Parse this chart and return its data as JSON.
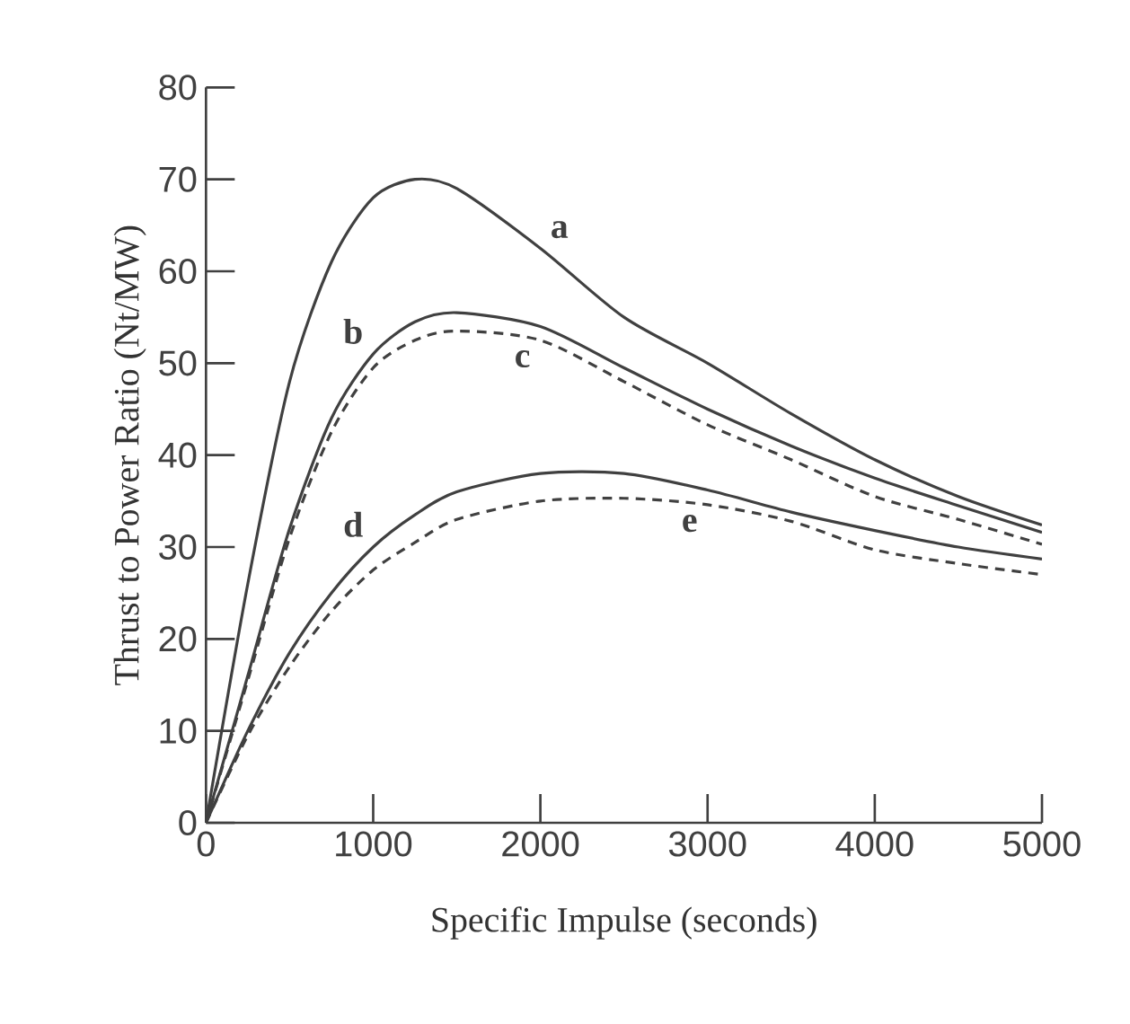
{
  "chart_data": {
    "type": "line",
    "xlabel": "Specific Impulse (seconds)",
    "ylabel": "Thrust to Power Ratio (Nt/MW)",
    "x": [
      0,
      250,
      500,
      750,
      1000,
      1250,
      1500,
      2000,
      2500,
      3000,
      3500,
      4000,
      4500,
      5000
    ],
    "series": [
      {
        "name": "a",
        "color": "#404040",
        "line_style": "solid",
        "values": [
          0,
          26,
          48,
          61,
          68,
          70,
          69,
          62.5,
          55,
          50,
          44.5,
          39.5,
          35.5,
          32.4
        ]
      },
      {
        "name": "b",
        "color": "#404040",
        "line_style": "solid",
        "values": [
          0,
          16,
          32,
          44,
          51,
          54.5,
          55.5,
          54,
          49.5,
          45,
          41,
          37.5,
          34.5,
          31.6
        ]
      },
      {
        "name": "c",
        "color": "#404040",
        "line_style": "dashed",
        "values": [
          0,
          15.5,
          31,
          42.5,
          49.5,
          52.5,
          53.5,
          52.5,
          48,
          43.3,
          39.5,
          35.5,
          33,
          30.3
        ]
      },
      {
        "name": "d",
        "color": "#404040",
        "line_style": "solid",
        "values": [
          0,
          10,
          18.5,
          25,
          30,
          33.5,
          36,
          38,
          38,
          36.2,
          33.8,
          31.8,
          30,
          28.7
        ]
      },
      {
        "name": "e",
        "color": "#404040",
        "line_style": "dashed",
        "values": [
          0,
          9.5,
          17,
          23,
          27.5,
          30.5,
          33,
          35,
          35.3,
          34.6,
          32.8,
          29.7,
          28.2,
          27
        ]
      }
    ],
    "xlim": [
      0,
      5000
    ],
    "ylim": [
      0,
      80
    ],
    "xticks": [
      0,
      1000,
      2000,
      3000,
      4000,
      5000
    ],
    "yticks": [
      0,
      10,
      20,
      30,
      40,
      50,
      60,
      70,
      80
    ],
    "grid": false,
    "legend": false,
    "marker": "none"
  }
}
